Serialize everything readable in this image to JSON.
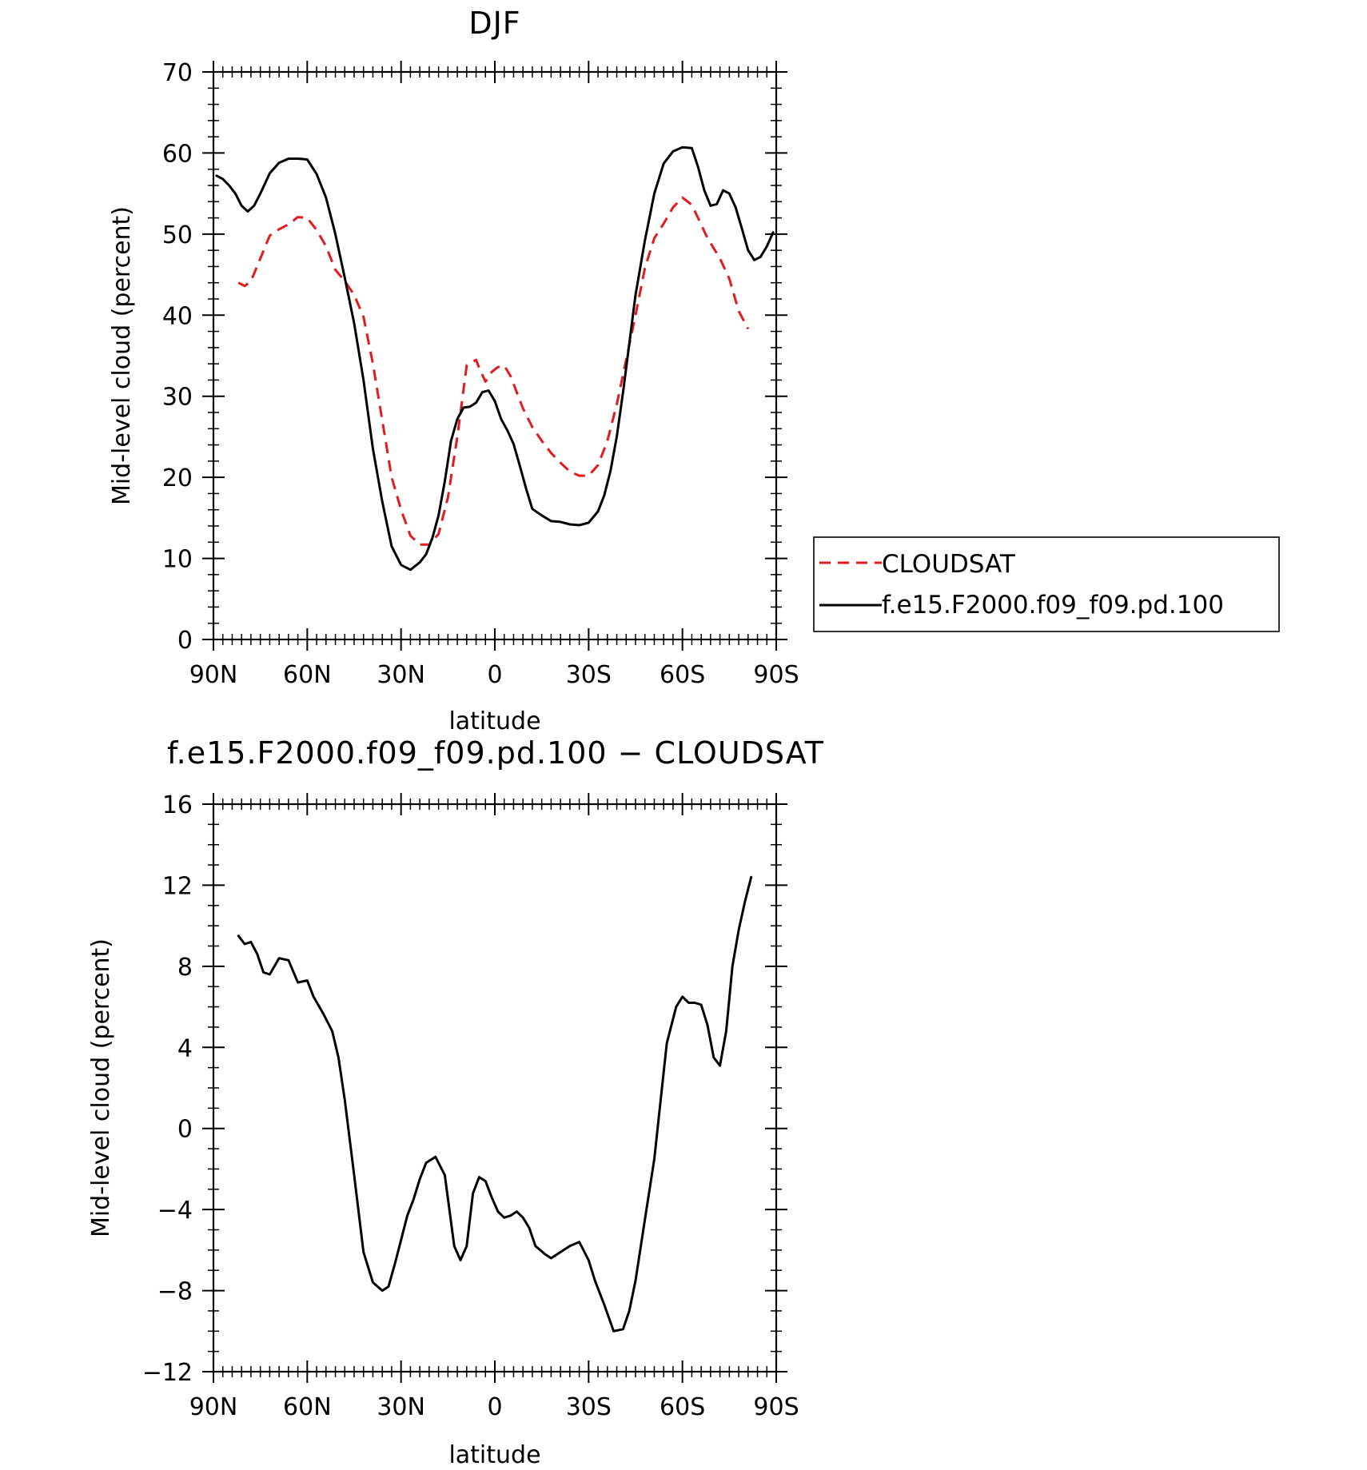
{
  "chart_data": [
    {
      "type": "line",
      "title": "DJF",
      "xlabel": "latitude",
      "ylabel": "Mid-level cloud (percent)",
      "ylim": [
        0,
        70
      ],
      "xlim": [
        90,
        -90
      ],
      "xticks": [
        90,
        60,
        30,
        0,
        -30,
        -60,
        -90
      ],
      "xtick_labels": [
        "90N",
        "60N",
        "30N",
        "0",
        "30S",
        "60S",
        "90S"
      ],
      "yticks": [
        0,
        10,
        20,
        30,
        40,
        50,
        60,
        70
      ],
      "ytick_labels": [
        "0",
        "10",
        "20",
        "30",
        "40",
        "50",
        "60",
        "70"
      ],
      "legend_position": "right",
      "series": [
        {
          "name": "CLOUDSAT",
          "color": "#e41a1c",
          "dash": "dashed",
          "x": [
            82,
            80,
            78,
            75,
            72,
            69,
            66,
            63,
            60,
            57,
            54,
            51,
            48,
            45,
            42,
            39,
            36,
            33,
            30,
            27,
            24,
            21,
            18,
            15,
            12,
            9,
            6,
            5,
            3,
            1,
            -1,
            -3,
            -5,
            -7,
            -9,
            -12,
            -15,
            -18,
            -21,
            -24,
            -27,
            -30,
            -33,
            -36,
            -39,
            -42,
            -45,
            -48,
            -51,
            -54,
            -57,
            -60,
            -63,
            -65,
            -68,
            -72,
            -75,
            -78,
            -81
          ],
          "y": [
            44,
            43.6,
            44.2,
            47,
            49.8,
            50.6,
            51.2,
            52.1,
            52,
            50.5,
            48.5,
            45.6,
            44.2,
            42.5,
            39.8,
            34,
            27,
            20,
            16,
            12.8,
            11.7,
            11.7,
            13,
            17.5,
            25,
            33.8,
            34.5,
            33.5,
            31.8,
            33,
            33.6,
            33.8,
            32.5,
            30.5,
            28.5,
            26.2,
            24.5,
            23,
            21.8,
            20.7,
            20.2,
            20.2,
            21.5,
            24.5,
            29,
            34.5,
            40,
            45.8,
            49.5,
            51.3,
            53.3,
            54.5,
            53.6,
            52,
            49.5,
            47,
            44.5,
            40.5,
            38.3
          ]
        },
        {
          "name": "f.e15.F2000.f09_f09.pd.100",
          "color": "#000000",
          "dash": "solid",
          "x": [
            89,
            87,
            85,
            83,
            81,
            79,
            77,
            75,
            72,
            69,
            66,
            63,
            60,
            57,
            54,
            51,
            48,
            45,
            42,
            39,
            36,
            33,
            30,
            27,
            24,
            22,
            20,
            18,
            16,
            14,
            12,
            10,
            8,
            6,
            4,
            2,
            0,
            -2,
            -4,
            -6,
            -8,
            -10,
            -12,
            -15,
            -18,
            -21,
            -24,
            -27,
            -30,
            -33,
            -35,
            -37,
            -39,
            -41,
            -43,
            -45,
            -48,
            -51,
            -54,
            -57,
            -60,
            -63,
            -65,
            -67,
            -69,
            -71,
            -73,
            -75,
            -77,
            -79,
            -81,
            -83,
            -85,
            -87,
            -89
          ],
          "y": [
            57.2,
            56.8,
            56,
            55,
            53.5,
            52.8,
            53.5,
            55,
            57.5,
            58.8,
            59.3,
            59.3,
            59.2,
            57.4,
            54.5,
            50,
            44.6,
            39,
            32,
            23.5,
            17,
            11.5,
            9.2,
            8.6,
            9.5,
            10.5,
            12.5,
            15.3,
            19.5,
            24.5,
            27.2,
            28.6,
            28.7,
            29.2,
            30.5,
            30.7,
            29.4,
            27.2,
            25.8,
            24.1,
            21.4,
            18.6,
            16.1,
            15.3,
            14.6,
            14.5,
            14.2,
            14.1,
            14.4,
            15.8,
            17.8,
            20.8,
            25,
            30.5,
            36.5,
            42.5,
            49.2,
            55,
            58.7,
            60.2,
            60.7,
            60.6,
            58.3,
            55.4,
            53.5,
            53.7,
            55.4,
            55,
            53.3,
            50.7,
            48,
            46.8,
            47.2,
            48.5,
            50.2
          ]
        }
      ]
    },
    {
      "type": "line",
      "title": "f.e15.F2000.f09_f09.pd.100 − CLOUDSAT",
      "xlabel": "latitude",
      "ylabel": "Mid-level cloud (percent)",
      "ylim": [
        -12,
        16
      ],
      "xlim": [
        90,
        -90
      ],
      "xticks": [
        90,
        60,
        30,
        0,
        -30,
        -60,
        -90
      ],
      "xtick_labels": [
        "90N",
        "60N",
        "30N",
        "0",
        "30S",
        "60S",
        "90S"
      ],
      "yticks": [
        -12,
        -8,
        -4,
        0,
        4,
        8,
        12,
        16
      ],
      "ytick_labels": [
        "−12",
        "−8",
        "−4",
        "0",
        "4",
        "8",
        "12",
        "16"
      ],
      "series": [
        {
          "color": "#000000",
          "dash": "solid",
          "x": [
            82,
            80,
            78,
            76,
            74,
            72,
            69,
            66,
            63,
            60,
            58,
            55,
            52,
            50,
            48,
            45,
            42,
            39,
            36,
            34,
            32,
            30,
            28,
            26,
            24,
            22,
            19,
            16,
            13,
            11,
            9,
            7,
            5,
            3,
            1,
            -1,
            -3,
            -5,
            -7,
            -9,
            -11,
            -13,
            -16,
            -18,
            -21,
            -24,
            -27,
            -30,
            -32,
            -35,
            -38,
            -41,
            -43,
            -45,
            -48,
            -51,
            -55,
            -58,
            -60,
            -62,
            -64,
            -66,
            -68,
            -70,
            -72,
            -74,
            -76,
            -78,
            -80,
            -82
          ],
          "x_note": "",
          "y": [
            9.5,
            9.1,
            9.2,
            8.6,
            7.7,
            7.6,
            8.4,
            8.3,
            7.2,
            7.3,
            6.5,
            5.7,
            4.8,
            3.5,
            1.4,
            -2.3,
            -6.1,
            -7.6,
            -8,
            -7.8,
            -6.7,
            -5.5,
            -4.3,
            -3.5,
            -2.5,
            -1.7,
            -1.4,
            -2.3,
            -5.8,
            -6.5,
            -5.8,
            -3.2,
            -2.4,
            -2.6,
            -3.4,
            -4.1,
            -4.4,
            -4.3,
            -4.1,
            -4.4,
            -4.9,
            -5.8,
            -6.2,
            -6.4,
            -6.1,
            -5.8,
            -5.6,
            -6.5,
            -7.5,
            -8.7,
            -10,
            -9.9,
            -9,
            -7.5,
            -4.5,
            -1.5,
            4.2,
            6,
            6.5,
            6.2,
            6.2,
            6.1,
            5.1,
            3.5,
            3.1,
            4.8,
            8,
            9.8,
            11.2,
            12.4
          ]
        }
      ]
    }
  ],
  "legend": {
    "entries": [
      "CLOUDSAT",
      "f.e15.F2000.f09_f09.pd.100"
    ]
  }
}
